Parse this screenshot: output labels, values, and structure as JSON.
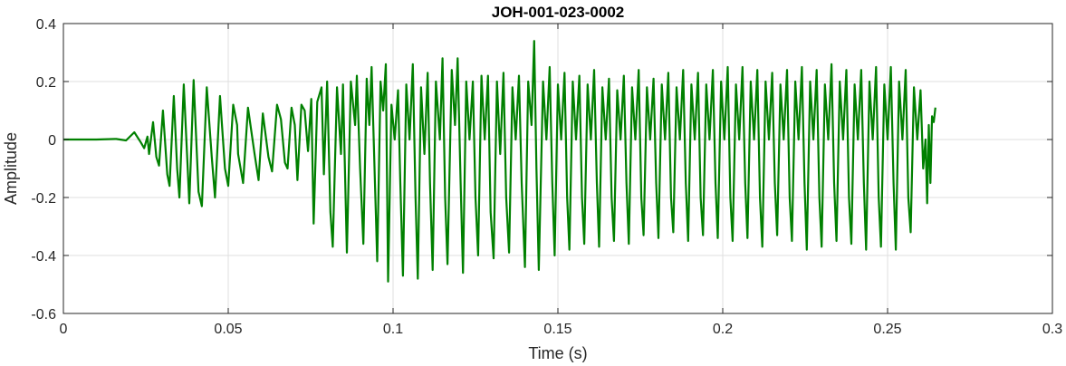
{
  "chart_data": {
    "type": "line",
    "title": "JOH-001-023-0002",
    "xlabel": "Time (s)",
    "ylabel": "Amplitude",
    "xlim": [
      0,
      0.3
    ],
    "ylim": [
      -0.6,
      0.4
    ],
    "x_ticks": [
      0,
      0.05,
      0.1,
      0.15,
      0.2,
      0.25,
      0.3
    ],
    "x_tick_labels": [
      "0",
      "0.05",
      "0.1",
      "0.15",
      "0.2",
      "0.25",
      "0.3"
    ],
    "y_ticks": [
      -0.6,
      -0.4,
      -0.2,
      0,
      0.2,
      0.4
    ],
    "y_tick_labels": [
      "-0.6",
      "-0.4",
      "-0.2",
      "0",
      "0.2",
      "0.4"
    ],
    "grid": true,
    "legend": "none",
    "series": [
      {
        "color": "#008000",
        "points": [
          [
            0.0,
            0.0
          ],
          [
            0.01,
            0.0
          ],
          [
            0.016,
            0.002
          ],
          [
            0.019,
            -0.003
          ],
          [
            0.0215,
            0.025
          ],
          [
            0.0235,
            -0.01
          ],
          [
            0.0245,
            -0.03
          ],
          [
            0.0255,
            0.01
          ],
          [
            0.026,
            -0.05
          ],
          [
            0.0272,
            0.06
          ],
          [
            0.0282,
            -0.06
          ],
          [
            0.029,
            -0.09
          ],
          [
            0.0302,
            0.1
          ],
          [
            0.0315,
            -0.12
          ],
          [
            0.0322,
            -0.16
          ],
          [
            0.0335,
            0.15
          ],
          [
            0.0345,
            -0.1
          ],
          [
            0.0352,
            -0.2
          ],
          [
            0.0365,
            0.19
          ],
          [
            0.0375,
            -0.05
          ],
          [
            0.0382,
            -0.22
          ],
          [
            0.0395,
            0.205
          ],
          [
            0.041,
            -0.18
          ],
          [
            0.042,
            -0.23
          ],
          [
            0.0435,
            0.18
          ],
          [
            0.045,
            -0.06
          ],
          [
            0.046,
            -0.2
          ],
          [
            0.0475,
            0.15
          ],
          [
            0.049,
            -0.1
          ],
          [
            0.05,
            -0.16
          ],
          [
            0.0515,
            0.12
          ],
          [
            0.0527,
            0.05
          ],
          [
            0.053,
            -0.05
          ],
          [
            0.0545,
            -0.15
          ],
          [
            0.056,
            0.11
          ],
          [
            0.058,
            -0.05
          ],
          [
            0.0592,
            -0.14
          ],
          [
            0.0605,
            0.09
          ],
          [
            0.0622,
            -0.06
          ],
          [
            0.0633,
            -0.11
          ],
          [
            0.0648,
            0.12
          ],
          [
            0.066,
            0.07
          ],
          [
            0.0672,
            -0.08
          ],
          [
            0.068,
            -0.1
          ],
          [
            0.0692,
            0.11
          ],
          [
            0.0702,
            0.05
          ],
          [
            0.071,
            -0.14
          ],
          [
            0.0722,
            0.12
          ],
          [
            0.0732,
            0.1
          ],
          [
            0.0742,
            -0.04
          ],
          [
            0.0752,
            0.14
          ],
          [
            0.0759,
            -0.29
          ],
          [
            0.077,
            0.13
          ],
          [
            0.0783,
            0.18
          ],
          [
            0.079,
            -0.12
          ],
          [
            0.08,
            0.2
          ],
          [
            0.081,
            -0.25
          ],
          [
            0.0817,
            -0.37
          ],
          [
            0.083,
            0.18
          ],
          [
            0.0842,
            -0.05
          ],
          [
            0.0848,
            0.19
          ],
          [
            0.0855,
            -0.15
          ],
          [
            0.086,
            -0.39
          ],
          [
            0.0872,
            0.2
          ],
          [
            0.0885,
            0.05
          ],
          [
            0.089,
            0.22
          ],
          [
            0.09,
            -0.1
          ],
          [
            0.091,
            -0.36
          ],
          [
            0.092,
            0.21
          ],
          [
            0.0928,
            0.05
          ],
          [
            0.0935,
            0.25
          ],
          [
            0.0945,
            -0.15
          ],
          [
            0.0952,
            -0.42
          ],
          [
            0.0962,
            0.2
          ],
          [
            0.097,
            0.1
          ],
          [
            0.0978,
            0.26
          ],
          [
            0.0985,
            -0.49
          ],
          [
            0.0995,
            0.12
          ],
          [
            0.1005,
            0.0
          ],
          [
            0.1015,
            0.17
          ],
          [
            0.1022,
            -0.15
          ],
          [
            0.103,
            -0.47
          ],
          [
            0.104,
            0.19
          ],
          [
            0.105,
            0.0
          ],
          [
            0.106,
            0.26
          ],
          [
            0.1068,
            -0.2
          ],
          [
            0.1075,
            -0.48
          ],
          [
            0.1085,
            0.18
          ],
          [
            0.1095,
            -0.05
          ],
          [
            0.1105,
            0.23
          ],
          [
            0.1112,
            -0.15
          ],
          [
            0.112,
            -0.45
          ],
          [
            0.113,
            0.2
          ],
          [
            0.1142,
            0.0
          ],
          [
            0.115,
            0.28
          ],
          [
            0.1158,
            -0.2
          ],
          [
            0.1165,
            -0.43
          ],
          [
            0.1178,
            0.24
          ],
          [
            0.1188,
            0.05
          ],
          [
            0.1196,
            0.28
          ],
          [
            0.1205,
            -0.15
          ],
          [
            0.1212,
            -0.46
          ],
          [
            0.1222,
            0.2
          ],
          [
            0.1232,
            0.0
          ],
          [
            0.1242,
            0.2
          ],
          [
            0.125,
            -0.2
          ],
          [
            0.1258,
            -0.4
          ],
          [
            0.1268,
            0.22
          ],
          [
            0.1278,
            0.0
          ],
          [
            0.1288,
            0.22
          ],
          [
            0.1296,
            -0.25
          ],
          [
            0.1305,
            -0.41
          ],
          [
            0.1315,
            0.2
          ],
          [
            0.1325,
            -0.05
          ],
          [
            0.1335,
            0.23
          ],
          [
            0.1343,
            -0.2
          ],
          [
            0.1352,
            -0.39
          ],
          [
            0.1362,
            0.18
          ],
          [
            0.1372,
            0.0
          ],
          [
            0.1382,
            0.22
          ],
          [
            0.139,
            -0.15
          ],
          [
            0.14,
            -0.44
          ],
          [
            0.141,
            0.2
          ],
          [
            0.142,
            0.05
          ],
          [
            0.1428,
            0.34
          ],
          [
            0.1435,
            -0.1
          ],
          [
            0.1442,
            -0.45
          ],
          [
            0.1455,
            0.2
          ],
          [
            0.1465,
            0.0
          ],
          [
            0.1475,
            0.25
          ],
          [
            0.1483,
            -0.15
          ],
          [
            0.149,
            -0.4
          ],
          [
            0.15,
            0.19
          ],
          [
            0.151,
            0.0
          ],
          [
            0.152,
            0.23
          ],
          [
            0.1528,
            -0.2
          ],
          [
            0.1535,
            -0.38
          ],
          [
            0.1545,
            0.2
          ],
          [
            0.1555,
            0.0
          ],
          [
            0.1565,
            0.22
          ],
          [
            0.1573,
            -0.2
          ],
          [
            0.158,
            -0.36
          ],
          [
            0.159,
            0.19
          ],
          [
            0.16,
            0.0
          ],
          [
            0.161,
            0.24
          ],
          [
            0.1618,
            -0.15
          ],
          [
            0.1625,
            -0.37
          ],
          [
            0.1635,
            0.18
          ],
          [
            0.1645,
            0.0
          ],
          [
            0.1655,
            0.21
          ],
          [
            0.1663,
            -0.2
          ],
          [
            0.167,
            -0.35
          ],
          [
            0.168,
            0.17
          ],
          [
            0.169,
            0.0
          ],
          [
            0.17,
            0.22
          ],
          [
            0.1708,
            -0.15
          ],
          [
            0.1715,
            -0.36
          ],
          [
            0.1725,
            0.18
          ],
          [
            0.1735,
            0.0
          ],
          [
            0.1745,
            0.24
          ],
          [
            0.1753,
            -0.2
          ],
          [
            0.176,
            -0.33
          ],
          [
            0.177,
            0.18
          ],
          [
            0.178,
            0.0
          ],
          [
            0.179,
            0.21
          ],
          [
            0.1798,
            -0.15
          ],
          [
            0.1805,
            -0.34
          ],
          [
            0.1815,
            0.19
          ],
          [
            0.1825,
            0.0
          ],
          [
            0.1835,
            0.23
          ],
          [
            0.1843,
            -0.2
          ],
          [
            0.185,
            -0.32
          ],
          [
            0.186,
            0.18
          ],
          [
            0.187,
            0.0
          ],
          [
            0.188,
            0.24
          ],
          [
            0.1888,
            -0.15
          ],
          [
            0.1895,
            -0.35
          ],
          [
            0.1905,
            0.19
          ],
          [
            0.1915,
            0.0
          ],
          [
            0.1925,
            0.23
          ],
          [
            0.1933,
            -0.2
          ],
          [
            0.194,
            -0.33
          ],
          [
            0.195,
            0.19
          ],
          [
            0.196,
            0.0
          ],
          [
            0.197,
            0.24
          ],
          [
            0.1978,
            -0.15
          ],
          [
            0.1985,
            -0.34
          ],
          [
            0.1995,
            0.2
          ],
          [
            0.2005,
            0.0
          ],
          [
            0.2015,
            0.25
          ],
          [
            0.2023,
            -0.2
          ],
          [
            0.203,
            -0.35
          ],
          [
            0.204,
            0.19
          ],
          [
            0.205,
            0.0
          ],
          [
            0.206,
            0.25
          ],
          [
            0.2068,
            -0.15
          ],
          [
            0.2075,
            -0.34
          ],
          [
            0.2085,
            0.2
          ],
          [
            0.2095,
            0.0
          ],
          [
            0.2105,
            0.24
          ],
          [
            0.2113,
            -0.2
          ],
          [
            0.212,
            -0.37
          ],
          [
            0.213,
            0.2
          ],
          [
            0.214,
            0.0
          ],
          [
            0.215,
            0.23
          ],
          [
            0.2158,
            -0.15
          ],
          [
            0.2165,
            -0.33
          ],
          [
            0.2175,
            0.19
          ],
          [
            0.2185,
            0.0
          ],
          [
            0.2195,
            0.24
          ],
          [
            0.2203,
            -0.2
          ],
          [
            0.221,
            -0.35
          ],
          [
            0.222,
            0.2
          ],
          [
            0.223,
            0.0
          ],
          [
            0.224,
            0.25
          ],
          [
            0.2248,
            -0.15
          ],
          [
            0.2255,
            -0.38
          ],
          [
            0.2265,
            0.2
          ],
          [
            0.2275,
            0.0
          ],
          [
            0.2285,
            0.24
          ],
          [
            0.2293,
            -0.2
          ],
          [
            0.23,
            -0.37
          ],
          [
            0.231,
            0.19
          ],
          [
            0.232,
            0.0
          ],
          [
            0.233,
            0.26
          ],
          [
            0.2338,
            -0.15
          ],
          [
            0.2345,
            -0.35
          ],
          [
            0.2355,
            0.2
          ],
          [
            0.2365,
            0.0
          ],
          [
            0.2375,
            0.24
          ],
          [
            0.2383,
            -0.2
          ],
          [
            0.239,
            -0.36
          ],
          [
            0.24,
            0.19
          ],
          [
            0.241,
            0.0
          ],
          [
            0.242,
            0.24
          ],
          [
            0.2428,
            -0.15
          ],
          [
            0.2435,
            -0.38
          ],
          [
            0.2445,
            0.2
          ],
          [
            0.2455,
            0.0
          ],
          [
            0.2465,
            0.25
          ],
          [
            0.2473,
            -0.2
          ],
          [
            0.248,
            -0.37
          ],
          [
            0.249,
            0.19
          ],
          [
            0.25,
            0.0
          ],
          [
            0.251,
            0.25
          ],
          [
            0.2518,
            -0.15
          ],
          [
            0.2525,
            -0.38
          ],
          [
            0.2535,
            0.2
          ],
          [
            0.2545,
            0.0
          ],
          [
            0.2555,
            0.24
          ],
          [
            0.2563,
            -0.2
          ],
          [
            0.257,
            -0.32
          ],
          [
            0.258,
            0.18
          ],
          [
            0.259,
            0.0
          ],
          [
            0.26,
            0.17
          ],
          [
            0.2608,
            -0.1
          ],
          [
            0.2615,
            0.0
          ],
          [
            0.262,
            -0.22
          ],
          [
            0.2625,
            0.05
          ],
          [
            0.263,
            -0.15
          ],
          [
            0.2635,
            0.08
          ],
          [
            0.264,
            0.06
          ],
          [
            0.2645,
            0.11
          ]
        ]
      }
    ]
  }
}
